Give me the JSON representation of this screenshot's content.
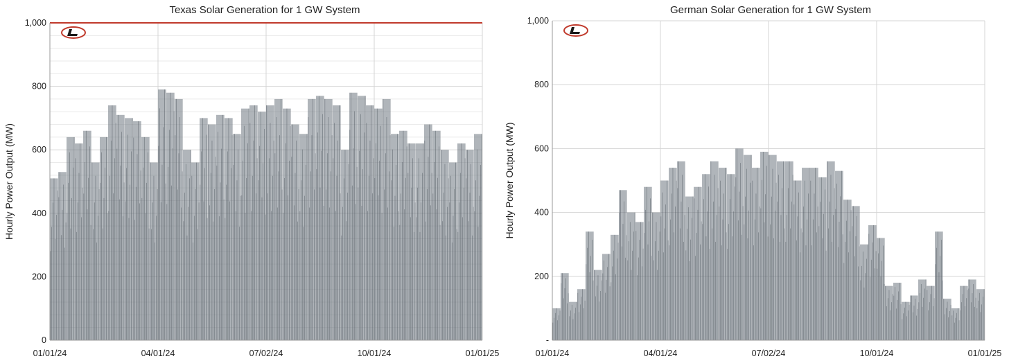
{
  "chart_data": [
    {
      "type": "bar",
      "title": "Texas Solar Generation for 1 GW System",
      "ylabel": "Hourly Power Output (MW)",
      "ylim": [
        0,
        1000
      ],
      "yticks": [
        0,
        200,
        400,
        600,
        800,
        1000
      ],
      "ytick_labels": [
        "0",
        "200",
        "400",
        "600",
        "800",
        "1,000"
      ],
      "xticks": [
        "01/01/24",
        "04/01/24",
        "07/02/24",
        "10/01/24",
        "01/01/25"
      ],
      "grid": true,
      "minor_grid": true,
      "cap_line": {
        "value": 1000,
        "color": "#c0392b"
      },
      "bar_color": "#6f7882",
      "series": [
        {
          "resolution": "weekly peak of hourly output (MW)",
          "x": [
            "01/01/24",
            "01/08/24",
            "01/15/24",
            "01/22/24",
            "01/29/24",
            "02/05/24",
            "02/12/24",
            "02/19/24",
            "02/26/24",
            "03/04/24",
            "03/11/24",
            "03/18/24",
            "03/25/24",
            "04/01/24",
            "04/08/24",
            "04/15/24",
            "04/22/24",
            "04/29/24",
            "05/06/24",
            "05/13/24",
            "05/20/24",
            "05/27/24",
            "06/03/24",
            "06/10/24",
            "06/17/24",
            "06/24/24",
            "07/01/24",
            "07/08/24",
            "07/15/24",
            "07/22/24",
            "07/29/24",
            "08/05/24",
            "08/12/24",
            "08/19/24",
            "08/26/24",
            "09/02/24",
            "09/09/24",
            "09/16/24",
            "09/23/24",
            "09/30/24",
            "10/07/24",
            "10/14/24",
            "10/21/24",
            "10/28/24",
            "11/04/24",
            "11/11/24",
            "11/18/24",
            "11/25/24",
            "12/02/24",
            "12/09/24",
            "12/16/24",
            "12/23/24"
          ],
          "values": [
            510,
            530,
            640,
            620,
            660,
            560,
            640,
            740,
            710,
            700,
            690,
            640,
            560,
            790,
            780,
            760,
            600,
            560,
            700,
            680,
            710,
            700,
            650,
            730,
            740,
            720,
            740,
            760,
            730,
            680,
            650,
            760,
            770,
            760,
            740,
            600,
            780,
            770,
            740,
            730,
            760,
            650,
            660,
            620,
            620,
            680,
            660,
            600,
            560,
            620,
            600,
            650
          ]
        }
      ]
    },
    {
      "type": "bar",
      "title": "German Solar Generation for 1 GW System",
      "ylabel": "Hourly Power Output (MW)",
      "ylim": [
        0,
        1000
      ],
      "yticks": [
        0,
        200,
        400,
        600,
        800,
        1000
      ],
      "ytick_labels": [
        "-",
        "200",
        "400",
        "600",
        "800",
        "1,000"
      ],
      "xticks": [
        "01/01/24",
        "04/01/24",
        "07/02/24",
        "10/01/24",
        "01/01/25"
      ],
      "grid": true,
      "minor_grid": false,
      "bar_color": "#6f7882",
      "series": [
        {
          "resolution": "weekly peak of hourly output (MW)",
          "x": [
            "01/01/24",
            "01/08/24",
            "01/15/24",
            "01/22/24",
            "01/29/24",
            "02/05/24",
            "02/12/24",
            "02/19/24",
            "02/26/24",
            "03/04/24",
            "03/11/24",
            "03/18/24",
            "03/25/24",
            "04/01/24",
            "04/08/24",
            "04/15/24",
            "04/22/24",
            "04/29/24",
            "05/06/24",
            "05/13/24",
            "05/20/24",
            "05/27/24",
            "06/03/24",
            "06/10/24",
            "06/17/24",
            "06/24/24",
            "07/01/24",
            "07/08/24",
            "07/15/24",
            "07/22/24",
            "07/29/24",
            "08/05/24",
            "08/12/24",
            "08/19/24",
            "08/26/24",
            "09/02/24",
            "09/09/24",
            "09/16/24",
            "09/23/24",
            "09/30/24",
            "10/07/24",
            "10/14/24",
            "10/21/24",
            "10/28/24",
            "11/04/24",
            "11/11/24",
            "11/18/24",
            "11/25/24",
            "12/02/24",
            "12/09/24",
            "12/16/24",
            "12/23/24"
          ],
          "values": [
            100,
            210,
            120,
            160,
            340,
            220,
            270,
            330,
            470,
            400,
            370,
            480,
            400,
            500,
            540,
            560,
            450,
            480,
            520,
            560,
            540,
            520,
            600,
            580,
            540,
            590,
            580,
            560,
            560,
            500,
            540,
            540,
            510,
            560,
            530,
            440,
            420,
            300,
            360,
            320,
            170,
            180,
            120,
            140,
            190,
            170,
            340,
            130,
            100,
            170,
            190,
            160
          ]
        }
      ]
    }
  ]
}
